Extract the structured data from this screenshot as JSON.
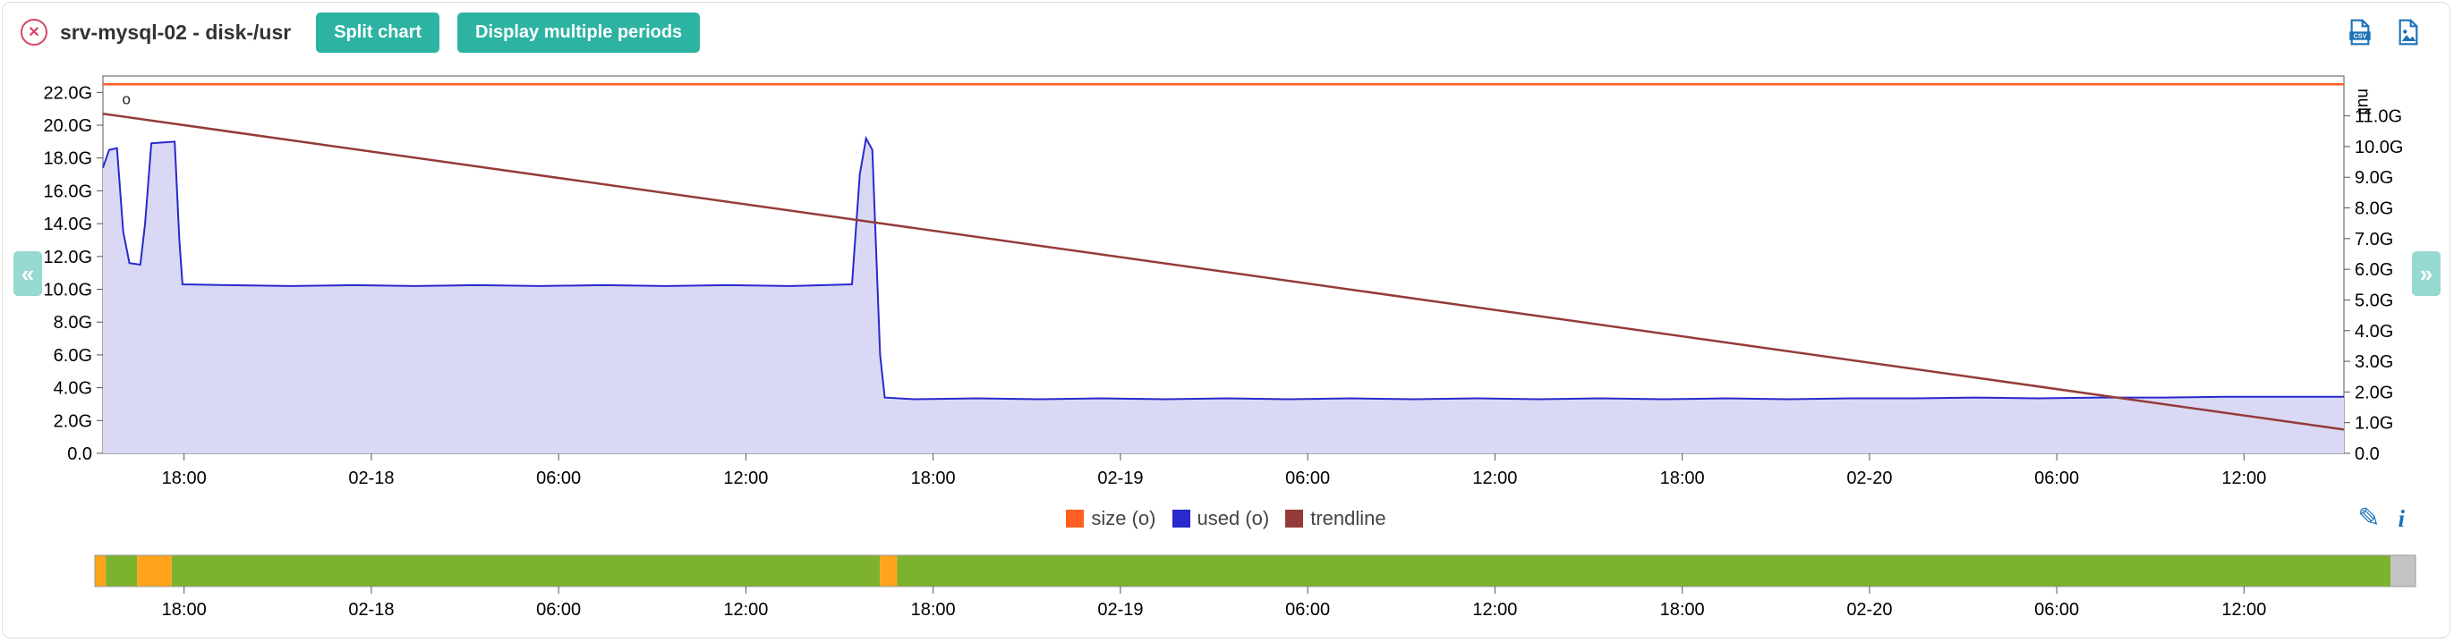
{
  "header": {
    "title": "srv-mysql-02 - disk-/usr",
    "close_glyph": "✕",
    "buttons": [
      {
        "label": "Split chart"
      },
      {
        "label": "Display multiple periods"
      }
    ],
    "export_icons": [
      {
        "name": "export-csv"
      },
      {
        "name": "export-image"
      }
    ]
  },
  "nav": {
    "prev_glyph": "«",
    "next_glyph": "»"
  },
  "legend": {
    "items": [
      {
        "label": "size (o)",
        "color": "#ff5f22"
      },
      {
        "label": "used (o)",
        "color": "#2929cc"
      },
      {
        "label": "trendline",
        "color": "#953b39"
      }
    ]
  },
  "tools": {
    "edit_glyph": "✎",
    "info_glyph": "i"
  },
  "colors": {
    "accent_teal": "#2cb3a2",
    "close_red": "#d64561",
    "icon_blue": "#1a72b8",
    "timeline_green": "#7cb22d",
    "timeline_orange": "#ffa41c",
    "timeline_gray": "#c4c4c4"
  },
  "chart_data": {
    "type": "area",
    "title": "srv-mysql-02 - disk-/usr",
    "x": {
      "unit": "hours-from-start",
      "range": [
        0,
        71.8
      ],
      "tick_hours": [
        2.6,
        8.6,
        14.6,
        20.6,
        26.6,
        32.6,
        38.6,
        44.6,
        50.6,
        56.6,
        62.6,
        68.6
      ],
      "tick_labels": [
        "18:00",
        "02-18",
        "06:00",
        "12:00",
        "18:00",
        "02-19",
        "06:00",
        "12:00",
        "18:00",
        "02-20",
        "06:00",
        "12:00"
      ]
    },
    "y_left": {
      "range": [
        0,
        23
      ],
      "tick_values": [
        22,
        20,
        18,
        16,
        14,
        12,
        10,
        8,
        6,
        4,
        2,
        0
      ],
      "tick_labels": [
        "22.0G",
        "20.0G",
        "18.0G",
        "16.0G",
        "14.0G",
        "12.0G",
        "10.0G",
        "8.0G",
        "6.0G",
        "4.0G",
        "2.0G",
        "0.0"
      ]
    },
    "y_right": {
      "range": [
        0,
        12.3
      ],
      "tick_values": [
        11,
        10,
        9,
        8,
        7,
        6,
        5,
        4,
        3,
        2,
        1,
        0
      ],
      "tick_labels": [
        "11.0G",
        "10.0G",
        "9.0G",
        "8.0G",
        "7.0G",
        "6.0G",
        "5.0G",
        "4.0G",
        "3.0G",
        "2.0G",
        "1.0G",
        "0.0"
      ],
      "axis_label": "null"
    },
    "series": [
      {
        "name": "size (o)",
        "type": "line",
        "color": "#ff5f22",
        "points": [
          [
            0,
            22.5
          ],
          [
            71.8,
            22.5
          ]
        ]
      },
      {
        "name": "used (o)",
        "type": "area",
        "color": "#2929cc",
        "fill": "#d9d9f5",
        "points": [
          [
            0,
            17.4
          ],
          [
            0.2,
            18.5
          ],
          [
            0.45,
            18.6
          ],
          [
            0.65,
            13.5
          ],
          [
            0.85,
            11.6
          ],
          [
            1.2,
            11.5
          ],
          [
            1.35,
            14.0
          ],
          [
            1.55,
            18.9
          ],
          [
            2.3,
            19.0
          ],
          [
            2.45,
            13.0
          ],
          [
            2.55,
            10.3
          ],
          [
            4,
            10.25
          ],
          [
            6,
            10.2
          ],
          [
            8,
            10.25
          ],
          [
            10,
            10.2
          ],
          [
            12,
            10.25
          ],
          [
            14,
            10.2
          ],
          [
            16,
            10.25
          ],
          [
            18,
            10.2
          ],
          [
            20,
            10.25
          ],
          [
            22,
            10.2
          ],
          [
            24.0,
            10.3
          ],
          [
            24.25,
            17.0
          ],
          [
            24.45,
            19.2
          ],
          [
            24.65,
            18.5
          ],
          [
            24.9,
            6.0
          ],
          [
            25.05,
            3.4
          ],
          [
            26,
            3.3
          ],
          [
            28,
            3.35
          ],
          [
            30,
            3.3
          ],
          [
            32,
            3.35
          ],
          [
            34,
            3.3
          ],
          [
            36,
            3.35
          ],
          [
            38,
            3.3
          ],
          [
            40,
            3.35
          ],
          [
            42,
            3.3
          ],
          [
            44,
            3.35
          ],
          [
            46,
            3.3
          ],
          [
            48,
            3.35
          ],
          [
            50,
            3.3
          ],
          [
            52,
            3.35
          ],
          [
            54,
            3.3
          ],
          [
            56,
            3.35
          ],
          [
            58,
            3.35
          ],
          [
            60,
            3.4
          ],
          [
            62,
            3.35
          ],
          [
            64,
            3.4
          ],
          [
            66,
            3.4
          ],
          [
            68,
            3.45
          ],
          [
            70,
            3.45
          ],
          [
            71.8,
            3.45
          ]
        ]
      },
      {
        "name": "trendline",
        "type": "line",
        "color": "#953b39",
        "points": [
          [
            0,
            20.7
          ],
          [
            71.8,
            1.45
          ]
        ]
      }
    ],
    "marker": {
      "glyph": "o",
      "at": [
        0.75,
        21.6
      ]
    }
  },
  "timeline": {
    "bar_segments": [
      {
        "from": 0.0,
        "to": 0.0047,
        "color": "#ffa41c"
      },
      {
        "from": 0.0047,
        "to": 0.0182,
        "color": "#7cb22d"
      },
      {
        "from": 0.0182,
        "to": 0.0331,
        "color": "#ffa41c"
      },
      {
        "from": 0.0331,
        "to": 0.3383,
        "color": "#7cb22d"
      },
      {
        "from": 0.3383,
        "to": 0.3457,
        "color": "#ffa41c"
      },
      {
        "from": 0.3457,
        "to": 0.9892,
        "color": "#7cb22d"
      },
      {
        "from": 0.9892,
        "to": 1.0,
        "color": "#c4c4c4"
      }
    ],
    "tick_labels": [
      "18:00",
      "02-18",
      "06:00",
      "12:00",
      "18:00",
      "02-19",
      "06:00",
      "12:00",
      "18:00",
      "02-20",
      "06:00",
      "12:00"
    ]
  }
}
